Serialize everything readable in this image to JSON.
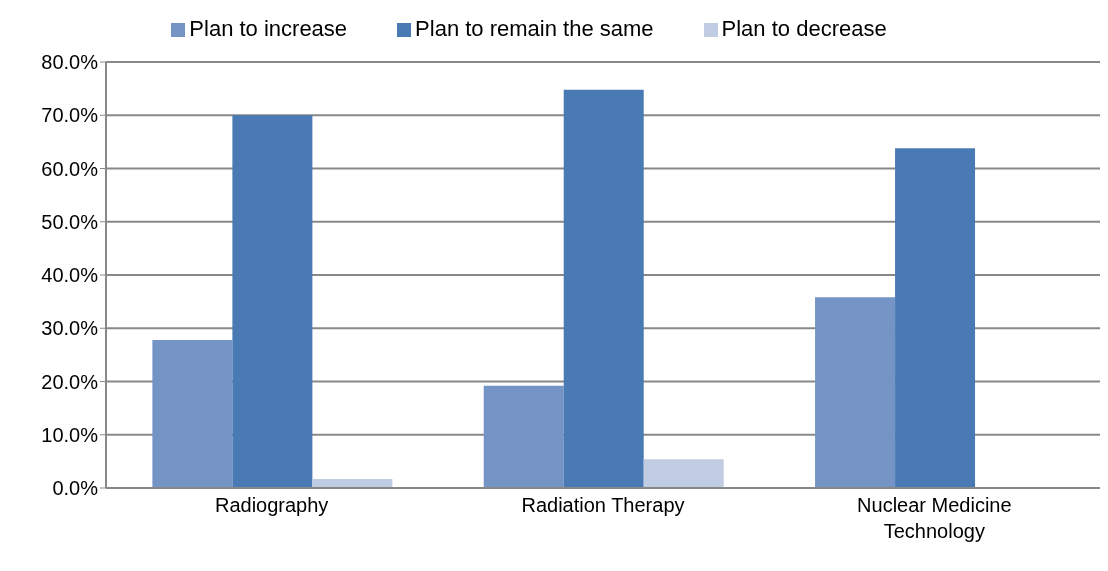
{
  "chart_data": {
    "type": "bar",
    "categories": [
      "Radiography",
      "Radiation Therapy",
      "Nuclear Medicine Technology"
    ],
    "series": [
      {
        "name": "Plan to increase",
        "color": "#7394c5",
        "values": [
          27.8,
          19.2,
          35.8
        ]
      },
      {
        "name": "Plan to remain the same",
        "color": "#4a7ab4",
        "values": [
          70.0,
          74.8,
          63.8
        ]
      },
      {
        "name": "Plan to decrease",
        "color": "#c0cce2",
        "values": [
          1.7,
          5.4,
          0
        ]
      }
    ],
    "ylim": [
      0,
      80
    ],
    "yticks": [
      {
        "value": 0,
        "label": "0.0%"
      },
      {
        "value": 10,
        "label": "10.0%"
      },
      {
        "value": 20,
        "label": "20.0%"
      },
      {
        "value": 30,
        "label": "30.0%"
      },
      {
        "value": 40,
        "label": "40.0%"
      },
      {
        "value": 50,
        "label": "50.0%"
      },
      {
        "value": 60,
        "label": "60.0%"
      },
      {
        "value": 70,
        "label": "70.0%"
      },
      {
        "value": 80,
        "label": "80.0%"
      }
    ],
    "grid": "y",
    "legend": "top"
  }
}
